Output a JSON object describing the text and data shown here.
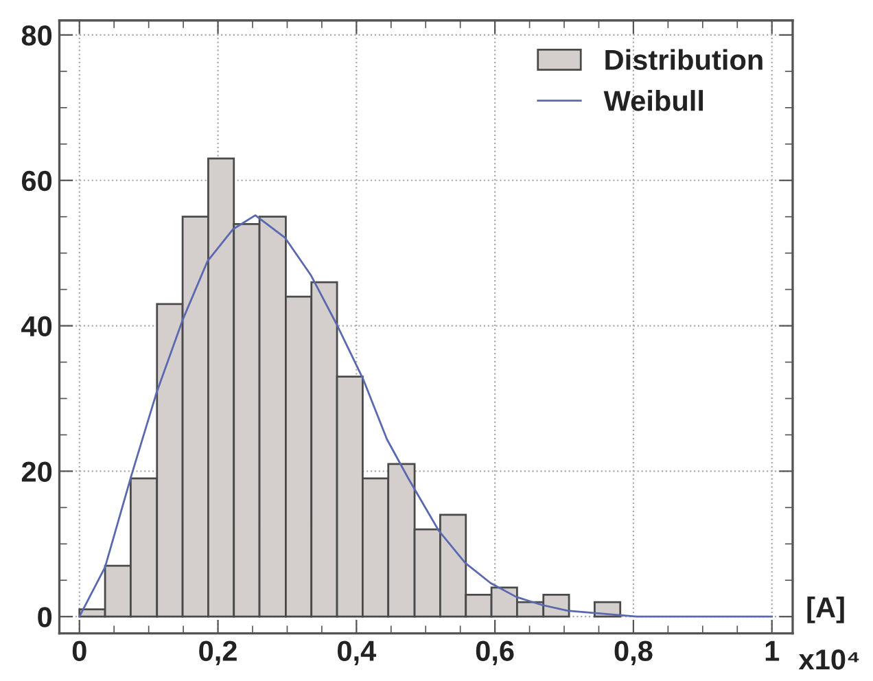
{
  "chart_data": {
    "type": "histogram",
    "bins": [
      0,
      0.037,
      0.074,
      0.112,
      0.149,
      0.186,
      0.223,
      0.26,
      0.298,
      0.335,
      0.372,
      0.409,
      0.446,
      0.484,
      0.521,
      0.558,
      0.595,
      0.632,
      0.67,
      0.707,
      0.744,
      0.781
    ],
    "series": [
      {
        "type": "histogram",
        "name": "Distribution",
        "color": "#d4cfcd",
        "values": [
          1,
          7,
          19,
          43,
          55,
          63,
          54,
          55,
          44,
          46,
          33,
          19,
          21,
          12,
          14,
          3,
          4,
          2,
          3,
          0,
          2
        ]
      },
      {
        "type": "line",
        "name": "Weibull",
        "color": "#5a68b0",
        "x": [
          0,
          0.037,
          0.075,
          0.111,
          0.149,
          0.185,
          0.222,
          0.254,
          0.297,
          0.334,
          0.372,
          0.41,
          0.444,
          0.475,
          0.519,
          0.557,
          0.594,
          0.631,
          0.668,
          0.705,
          0.781,
          0.805,
          1.0
        ],
        "values": [
          0,
          6.8,
          19.4,
          30.7,
          40.8,
          48.9,
          53.3,
          55.2,
          52.1,
          47,
          40.1,
          32.6,
          24.4,
          19,
          11.8,
          7.4,
          4.6,
          2.7,
          1.6,
          0.8,
          0.2,
          0,
          0
        ]
      }
    ],
    "xlabel": "[A]",
    "annotations": [
      "x10⁴"
    ],
    "xlim": [
      -0.029,
      1.03
    ],
    "ylim": [
      -2.3,
      82
    ],
    "xticks": [
      0,
      {
        "value": 0.2,
        "label": "0,2"
      },
      {
        "value": 0.4,
        "label": "0,4"
      },
      {
        "value": 0.6,
        "label": "0,6"
      },
      {
        "value": 0.8,
        "label": "0,8"
      },
      1
    ],
    "yticks": [
      0,
      20,
      40,
      60,
      80
    ],
    "grid": true,
    "legend": "top right"
  }
}
